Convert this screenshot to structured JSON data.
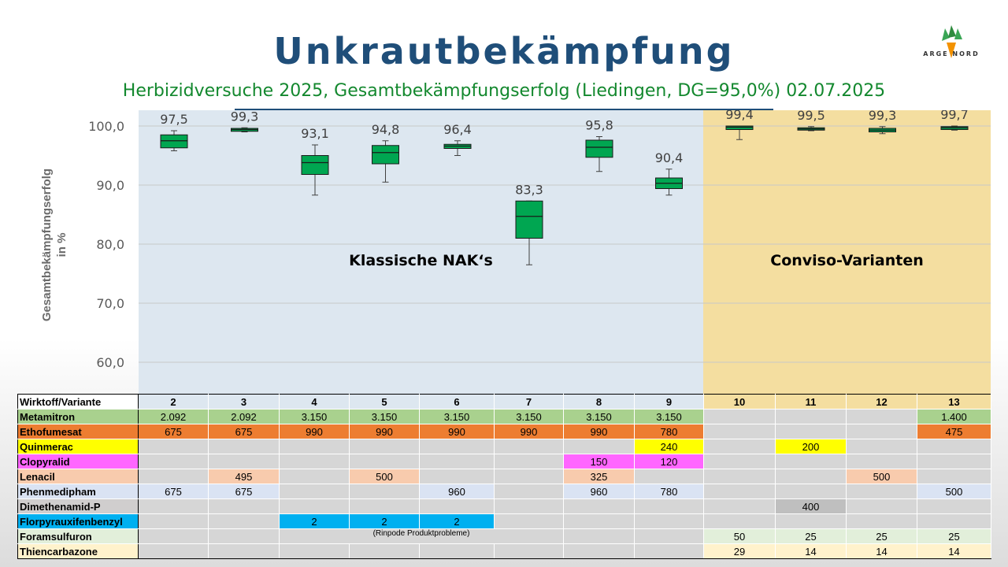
{
  "title": "Unkrautbekämpfung",
  "subtitle": "Herbizidversuche 2025, Gesamtbekämpfungserfolg (Liedingen, DG=95,0%) 02.07.2025",
  "logo": {
    "text": "ARGE NORD",
    "icon": "sugar-beet-logo-icon"
  },
  "colors": {
    "title": "#1f4e79",
    "subtitle": "#13882e",
    "box": "#00a651",
    "panel_classic": "#dde7f0",
    "panel_conviso": "#f4dea0"
  },
  "chart_data": {
    "type": "boxplot",
    "ylabel": "Gesamtbekämpfungserfolg in %",
    "ylabel_lines": [
      "Gesamtbekämpfungserfolg",
      "in %"
    ],
    "ylim": [
      55,
      102
    ],
    "yticks": [
      60,
      70,
      80,
      90,
      100
    ],
    "yticklabels": [
      "60,0",
      "70,0",
      "80,0",
      "90,0",
      "100,0"
    ],
    "grid": true,
    "categories": [
      "2",
      "3",
      "4",
      "5",
      "6",
      "7",
      "8",
      "9",
      "10",
      "11",
      "12",
      "13"
    ],
    "boxes": [
      {
        "variant": "2",
        "min": 95.8,
        "q1": 96.3,
        "median": 97.5,
        "q3": 98.5,
        "max": 99.2,
        "mean_label": "97,5"
      },
      {
        "variant": "3",
        "min": 99.0,
        "q1": 99.1,
        "median": 99.4,
        "q3": 99.6,
        "max": 99.7,
        "mean_label": "99,3"
      },
      {
        "variant": "4",
        "min": 88.3,
        "q1": 91.8,
        "median": 93.8,
        "q3": 95.0,
        "max": 96.8,
        "mean_label": "93,1"
      },
      {
        "variant": "5",
        "min": 90.5,
        "q1": 93.6,
        "median": 95.5,
        "q3": 96.7,
        "max": 97.5,
        "mean_label": "94,8"
      },
      {
        "variant": "6",
        "min": 95.0,
        "q1": 96.2,
        "median": 96.6,
        "q3": 96.9,
        "max": 97.5,
        "mean_label": "96,4"
      },
      {
        "variant": "7",
        "min": 76.5,
        "q1": 81.0,
        "median": 84.7,
        "q3": 87.3,
        "max": 87.3,
        "mean_label": "83,3"
      },
      {
        "variant": "8",
        "min": 92.3,
        "q1": 94.7,
        "median": 96.4,
        "q3": 97.6,
        "max": 98.2,
        "mean_label": "95,8"
      },
      {
        "variant": "9",
        "min": 88.3,
        "q1": 89.4,
        "median": 90.3,
        "q3": 91.2,
        "max": 92.7,
        "mean_label": "90,4"
      },
      {
        "variant": "10",
        "min": 97.7,
        "q1": 99.4,
        "median": 99.8,
        "q3": 100.0,
        "max": 100.0,
        "mean_label": "99,4"
      },
      {
        "variant": "11",
        "min": 99.2,
        "q1": 99.3,
        "median": 99.5,
        "q3": 99.7,
        "max": 99.9,
        "mean_label": "99,5"
      },
      {
        "variant": "12",
        "min": 98.7,
        "q1": 99.0,
        "median": 99.3,
        "q3": 99.6,
        "max": 99.9,
        "mean_label": "99,3"
      },
      {
        "variant": "13",
        "min": 99.3,
        "q1": 99.4,
        "median": 99.7,
        "q3": 99.9,
        "max": 100.0,
        "mean_label": "99,7"
      }
    ],
    "groups": [
      {
        "label": "Klassische NAK‘s",
        "variants": [
          "2",
          "3",
          "4",
          "5",
          "6",
          "7",
          "8",
          "9"
        ],
        "color": "#dde7f0"
      },
      {
        "label": "Conviso-Varianten",
        "variants": [
          "10",
          "11",
          "12",
          "13"
        ],
        "color": "#f4dea0"
      }
    ]
  },
  "table": {
    "header_label": "Wirktoff/Variante",
    "variants": [
      "2",
      "3",
      "4",
      "5",
      "6",
      "7",
      "8",
      "9",
      "10",
      "11",
      "12",
      "13"
    ],
    "note": "(Rinpode Produktprobleme)",
    "rows": [
      {
        "name": "Metamitron",
        "label_color": "#a9d18e",
        "cells": [
          "2.092",
          "2.092",
          "3.150",
          "3.150",
          "3.150",
          "3.150",
          "3.150",
          "3.150",
          "",
          "",
          "",
          "1.400"
        ],
        "fill": [
          "#a9d18e",
          "#a9d18e",
          "#a9d18e",
          "#a9d18e",
          "#a9d18e",
          "#a9d18e",
          "#a9d18e",
          "#a9d18e",
          "",
          "",
          "",
          "#a9d18e"
        ]
      },
      {
        "name": "Ethofumesat",
        "label_color": "#ed7d31",
        "cells": [
          "675",
          "675",
          "990",
          "990",
          "990",
          "990",
          "990",
          "780",
          "",
          "",
          "",
          "475"
        ],
        "fill": [
          "#ed7d31",
          "#ed7d31",
          "#ed7d31",
          "#ed7d31",
          "#ed7d31",
          "#ed7d31",
          "#ed7d31",
          "#ed7d31",
          "",
          "",
          "",
          "#ed7d31"
        ]
      },
      {
        "name": "Quinmerac",
        "label_color": "#ffff00",
        "cells": [
          "",
          "",
          "",
          "",
          "",
          "",
          "",
          "240",
          "",
          "200",
          "",
          ""
        ],
        "fill": [
          "",
          "",
          "",
          "",
          "",
          "",
          "",
          "#ffff00",
          "",
          "#ffff00",
          "",
          ""
        ]
      },
      {
        "name": "Clopyralid",
        "label_color": "#ff66ff",
        "cells": [
          "",
          "",
          "",
          "",
          "",
          "",
          "150",
          "120",
          "",
          "",
          "",
          ""
        ],
        "fill": [
          "",
          "",
          "",
          "",
          "",
          "",
          "#ff66ff",
          "#ff66ff",
          "",
          "",
          "",
          ""
        ]
      },
      {
        "name": "Lenacil",
        "label_color": "#f8cbad",
        "cells": [
          "",
          "495",
          "",
          "500",
          "",
          "",
          "325",
          "",
          "",
          "",
          "500",
          ""
        ],
        "fill": [
          "",
          "#f8cbad",
          "",
          "#f8cbad",
          "",
          "",
          "#f8cbad",
          "",
          "",
          "",
          "#f8cbad",
          ""
        ]
      },
      {
        "name": "Phenmedipham",
        "label_color": "#dae3f3",
        "cells": [
          "675",
          "675",
          "",
          "",
          "960",
          "",
          "960",
          "780",
          "",
          "",
          "",
          "500"
        ],
        "fill": [
          "#dae3f3",
          "#dae3f3",
          "",
          "",
          "#dae3f3",
          "",
          "#dae3f3",
          "#dae3f3",
          "",
          "",
          "",
          "#dae3f3"
        ]
      },
      {
        "name": "Dimethenamid-P",
        "label_color": "#d0cece",
        "cells": [
          "",
          "",
          "",
          "",
          "",
          "",
          "",
          "",
          "",
          "400",
          "",
          ""
        ],
        "fill": [
          "",
          "",
          "",
          "",
          "",
          "",
          "",
          "",
          "",
          "#bfbfbf",
          "",
          ""
        ]
      },
      {
        "name": "Florpyrauxifenbenzyl",
        "label_color": "#00b0f0",
        "cells": [
          "",
          "",
          "2",
          "2",
          "2",
          "",
          "",
          "",
          "",
          "",
          "",
          ""
        ],
        "fill": [
          "",
          "",
          "#00b0f0",
          "#00b0f0",
          "#00b0f0",
          "",
          "",
          "",
          "",
          "",
          "",
          ""
        ]
      },
      {
        "name": "Foramsulfuron",
        "label_color": "#e2efda",
        "cells": [
          "",
          "",
          "",
          "",
          "",
          "",
          "",
          "",
          "50",
          "25",
          "25",
          "25"
        ],
        "fill": [
          "",
          "",
          "",
          "",
          "",
          "",
          "",
          "",
          "#e2efda",
          "#e2efda",
          "#e2efda",
          "#e2efda"
        ]
      },
      {
        "name": "Thiencarbazone",
        "label_color": "#fff2cc",
        "cells": [
          "",
          "",
          "",
          "",
          "",
          "",
          "",
          "",
          "29",
          "14",
          "14",
          "14"
        ],
        "fill": [
          "",
          "",
          "",
          "",
          "",
          "",
          "",
          "",
          "#fff2cc",
          "#fff2cc",
          "#fff2cc",
          "#fff2cc"
        ]
      }
    ]
  }
}
